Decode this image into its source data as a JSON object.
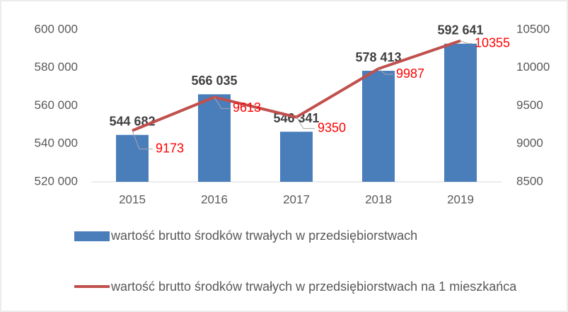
{
  "chart_data": {
    "type": "bar_line",
    "categories": [
      "2015",
      "2016",
      "2017",
      "2018",
      "2019"
    ],
    "series": [
      {
        "name": "wartość brutto środków trwałych w przedsiębiorstwach",
        "type": "bar",
        "color": "#4a7ebb",
        "values": [
          544682,
          566035,
          546341,
          578413,
          592641
        ],
        "value_labels": [
          "544 682",
          "566 035",
          "546 341",
          "578 413",
          "592 641"
        ]
      },
      {
        "name": "wartość brutto środków trwałych w przedsiębiorstwach na 1 mieszkańca",
        "type": "line",
        "axis": "y2",
        "color": "#c0504d",
        "values": [
          9173,
          9613,
          9350,
          9987,
          10355
        ]
      }
    ],
    "ylim": [
      520000,
      600000
    ],
    "yticks": [
      {
        "value": 520000,
        "label": "520 000"
      },
      {
        "value": 540000,
        "label": "540 000"
      },
      {
        "value": 560000,
        "label": "560 000"
      },
      {
        "value": 580000,
        "label": "580 000"
      },
      {
        "value": 600000,
        "label": "600 000"
      }
    ],
    "y2lim": [
      8500,
      10500
    ],
    "y2ticks": [
      8500,
      9000,
      9500,
      10000,
      10500
    ],
    "grid": false
  }
}
